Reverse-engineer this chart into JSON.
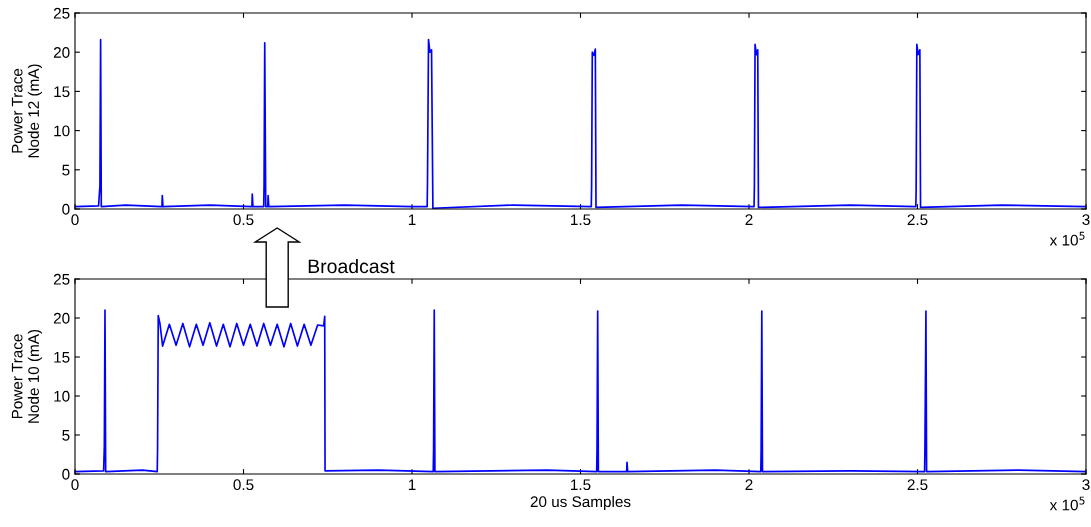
{
  "chart_data": [
    {
      "type": "line",
      "ylabel": "Power Trace\nNode 12 (mA)",
      "xlim": [
        0,
        3
      ],
      "xticks": [
        0,
        0.5,
        1,
        1.5,
        2,
        2.5,
        3
      ],
      "ylim": [
        0,
        25
      ],
      "yticks": [
        0,
        5,
        10,
        15,
        20,
        25
      ],
      "grid": false,
      "legend": false,
      "annotations": [
        "x 10$^{5}$"
      ],
      "series": [
        {
          "color": "#0000ff",
          "x": [
            0,
            0.07,
            0.074,
            0.076,
            0.078,
            0.15,
            0.258,
            0.259,
            0.261,
            0.4,
            0.525,
            0.526,
            0.528,
            0.56,
            0.561,
            0.563,
            0.566,
            0.572,
            0.573,
            0.575,
            0.8,
            1.0,
            1.045,
            1.046,
            1.049,
            1.053,
            1.058,
            1.062,
            1.3,
            1.532,
            1.533,
            1.535,
            1.54,
            1.544,
            1.546,
            1.8,
            2.015,
            2.016,
            2.018,
            2.022,
            2.026,
            2.028,
            2.3,
            2.495,
            2.496,
            2.498,
            2.502,
            2.507,
            2.509,
            2.75,
            3.0
          ],
          "values": [
            0.3,
            0.4,
            3.0,
            21.6,
            0.3,
            0.5,
            0.3,
            1.7,
            0.3,
            0.5,
            0.3,
            1.9,
            0.3,
            0.3,
            3.0,
            21.2,
            0.3,
            0.3,
            1.7,
            0.3,
            0.5,
            0.3,
            0.3,
            3.5,
            21.6,
            20.0,
            20.3,
            0.1,
            0.5,
            0.3,
            3.0,
            20.0,
            19.6,
            20.4,
            0.2,
            0.5,
            0.3,
            3.0,
            21.0,
            19.7,
            20.3,
            0.2,
            0.5,
            0.3,
            2.5,
            21.0,
            19.7,
            20.3,
            0.2,
            0.5,
            0.3
          ]
        }
      ]
    },
    {
      "type": "line",
      "xlabel": "20 us Samples",
      "ylabel": "Power Trace\nNode 10 (mA)",
      "xlim": [
        0,
        3
      ],
      "xticks": [
        0,
        0.5,
        1,
        1.5,
        2,
        2.5,
        3
      ],
      "ylim": [
        0,
        25
      ],
      "yticks": [
        0,
        5,
        10,
        15,
        20,
        25
      ],
      "grid": false,
      "legend": false,
      "annotations": [
        "x 10$^{5}$",
        "Broadcast"
      ],
      "series": [
        {
          "color": "#0000ff",
          "x": [
            0,
            0.085,
            0.087,
            0.089,
            0.091,
            0.2,
            0.244,
            0.245,
            0.247,
            0.252,
            0.26,
            0.28,
            0.3,
            0.32,
            0.34,
            0.36,
            0.38,
            0.4,
            0.42,
            0.44,
            0.46,
            0.48,
            0.5,
            0.52,
            0.54,
            0.56,
            0.58,
            0.6,
            0.62,
            0.64,
            0.66,
            0.68,
            0.7,
            0.72,
            0.738,
            0.741,
            0.742,
            0.9,
            1.063,
            1.064,
            1.066,
            1.068,
            1.4,
            1.548,
            1.549,
            1.551,
            1.553,
            1.637,
            1.638,
            1.64,
            1.9,
            2.035,
            2.036,
            2.038,
            2.04,
            2.3,
            2.521,
            2.522,
            2.525,
            2.527,
            2.8,
            3.0
          ],
          "values": [
            0.3,
            0.4,
            3.5,
            21.0,
            0.3,
            0.5,
            0.3,
            3.0,
            20.3,
            19.3,
            16.4,
            19.2,
            16.5,
            19.3,
            16.3,
            19.2,
            16.5,
            19.4,
            16.4,
            19.2,
            16.3,
            19.3,
            16.5,
            19.2,
            16.4,
            19.3,
            16.5,
            19.2,
            16.3,
            19.3,
            16.4,
            19.2,
            16.5,
            19.1,
            19.0,
            20.2,
            0.4,
            0.5,
            0.3,
            3.0,
            21.0,
            0.3,
            0.5,
            0.3,
            3.0,
            20.9,
            0.3,
            0.3,
            1.5,
            0.3,
            0.5,
            0.3,
            3.0,
            20.9,
            0.3,
            0.4,
            0.3,
            3.0,
            20.9,
            0.3,
            0.5,
            0.3
          ]
        }
      ]
    }
  ]
}
